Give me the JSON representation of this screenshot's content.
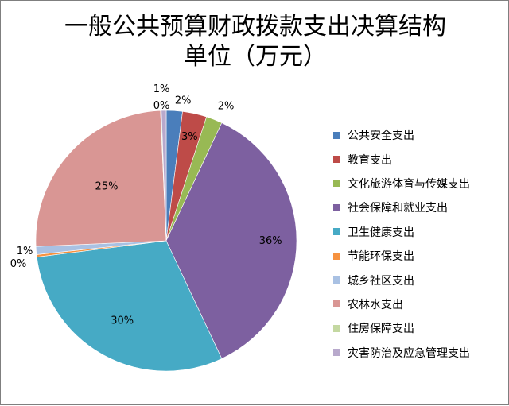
{
  "chart_data": {
    "type": "pie",
    "title": "一般公共预算财政拨款支出决算结构",
    "subtitle": "单位（万元）",
    "legend_position": "right",
    "slices": [
      {
        "name": "公共安全支出",
        "value": 2,
        "label": "2%",
        "color": "#4a7ebb"
      },
      {
        "name": "教育支出",
        "value": 3,
        "label": "3%",
        "color": "#be4b48"
      },
      {
        "name": "文化旅游体育与传媒支出",
        "value": 2,
        "label": "2%",
        "color": "#98b954"
      },
      {
        "name": "社会保障和就业支出",
        "value": 36,
        "label": "36%",
        "color": "#7d60a0"
      },
      {
        "name": "卫生健康支出",
        "value": 30,
        "label": "30%",
        "color": "#46aac5"
      },
      {
        "name": "节能环保支出",
        "value": 0.3,
        "label": "0%",
        "color": "#f69240"
      },
      {
        "name": "城乡社区支出",
        "value": 1,
        "label": "1%",
        "color": "#a9c1e3"
      },
      {
        "name": "农林水支出",
        "value": 25,
        "label": "25%",
        "color": "#d99694"
      },
      {
        "name": "住房保障支出",
        "value": 0.1,
        "label": "0%",
        "color": "#c4d8a1"
      },
      {
        "name": "灾害防治及应急管理支出",
        "value": 0.6,
        "label": "1%",
        "color": "#b8a9cc"
      }
    ]
  }
}
